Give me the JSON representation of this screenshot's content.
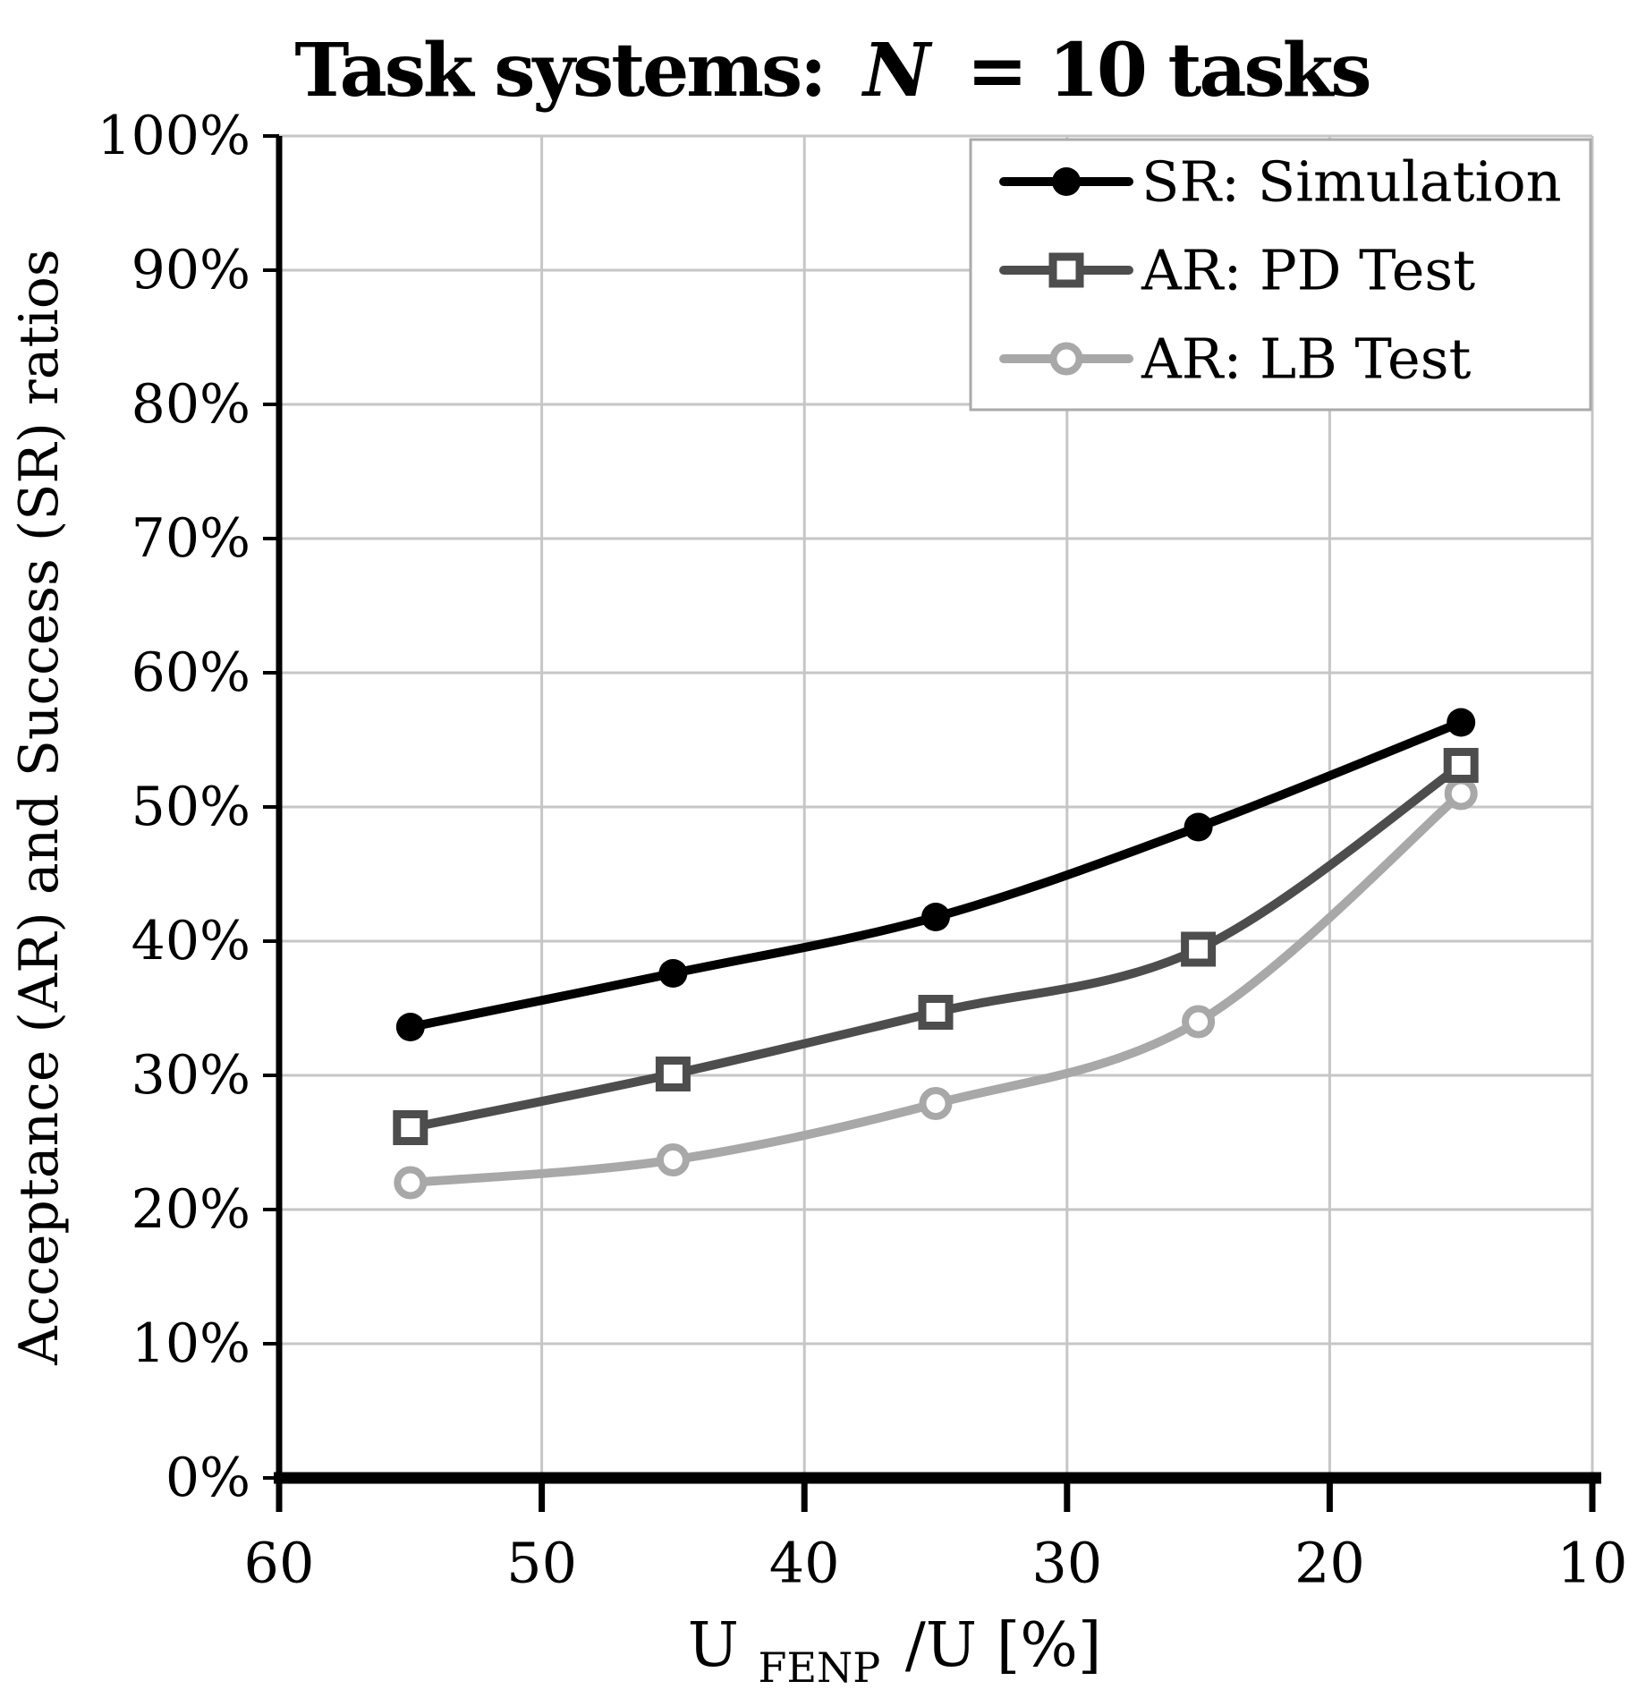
{
  "title": {
    "prefix": "Task systems:",
    "emphasis": "N",
    "suffix": "= 10 tasks"
  },
  "y_axis": {
    "label": "Acceptance (AR) and Success (SR) ratios",
    "tick_labels": [
      "0%",
      "10%",
      "20%",
      "30%",
      "40%",
      "50%",
      "60%",
      "70%",
      "80%",
      "90%",
      "100%"
    ]
  },
  "x_axis": {
    "label_base": "U",
    "label_subscript": "FENP",
    "label_rest": "/U [%]",
    "tick_labels": [
      "60",
      "50",
      "40",
      "30",
      "20",
      "10"
    ]
  },
  "legend": {
    "items": [
      "SR: Simulation",
      "AR: PD Test",
      "AR: LB Test"
    ]
  },
  "chart_data": {
    "type": "line",
    "title": "Task systems: N = 10 tasks",
    "x": [
      55,
      45,
      35,
      25,
      15
    ],
    "series": [
      {
        "name": "SR: Simulation",
        "values": [
          33.6,
          37.6,
          41.8,
          48.5,
          56.3
        ],
        "color": "#000000",
        "marker": "filled-circle"
      },
      {
        "name": "AR: PD Test",
        "values": [
          26.1,
          30.1,
          34.7,
          39.4,
          53.1
        ],
        "color": "#4d4d4d",
        "marker": "open-square"
      },
      {
        "name": "AR: LB Test",
        "values": [
          22.0,
          23.7,
          27.9,
          34.0,
          51.0
        ],
        "color": "#a8a8a8",
        "marker": "open-circle"
      }
    ],
    "xlabel": "U_FENP/U [%]",
    "ylabel": "Acceptance (AR) and Success (SR) ratios",
    "xlim": [
      60,
      10
    ],
    "ylim": [
      0,
      100
    ],
    "x_axis_reversed": true,
    "grid": true,
    "legend_position": "top-right",
    "colors": {
      "grid": "#c6c6c6",
      "axis": "#000000",
      "legend_border": "#aaaaaa",
      "background": "#ffffff"
    }
  }
}
